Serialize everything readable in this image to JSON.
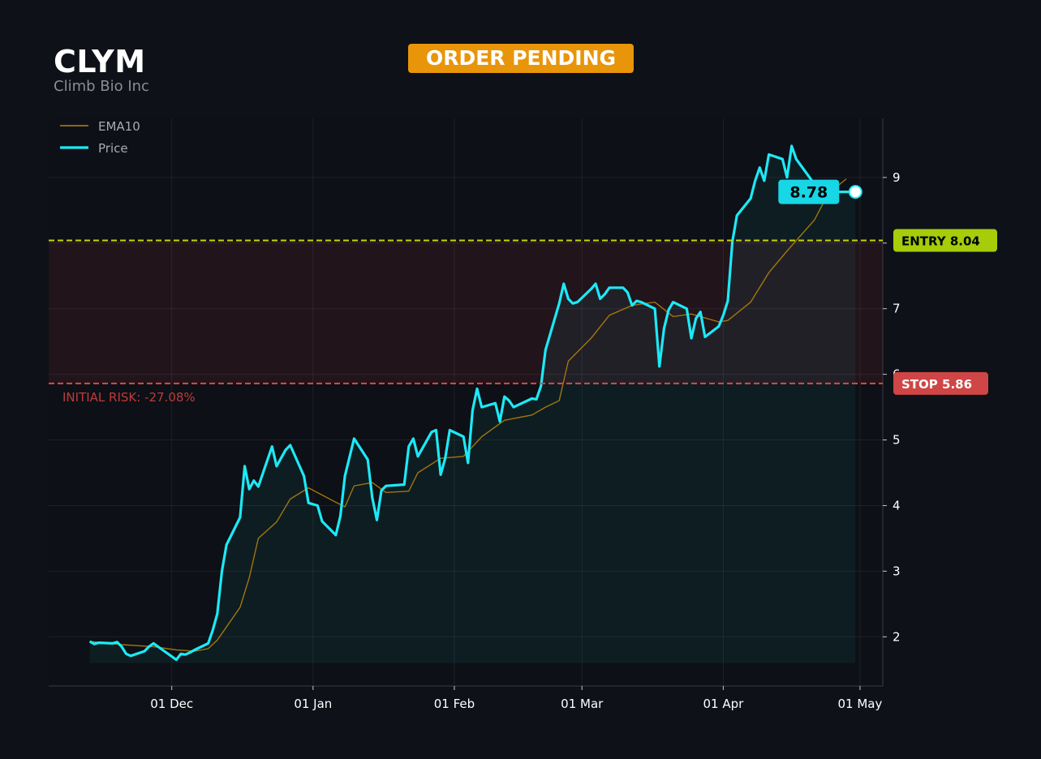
{
  "header": {
    "ticker": "CLYM",
    "company": "Climb Bio Inc",
    "status": "ORDER PENDING"
  },
  "colors": {
    "background": "#0e1118",
    "price": "#1de9f6",
    "ema": "#b8860b",
    "entry": "#c8d400",
    "stop": "#e04848",
    "status": "#e8950a"
  },
  "chart_data": {
    "type": "line",
    "x_type": "date",
    "xlim": [
      "2024-11-04",
      "2025-05-06"
    ],
    "ylim": [
      1.25,
      9.9
    ],
    "yticks": [
      2,
      3,
      4,
      5,
      6,
      7,
      8,
      9
    ],
    "xticks": [
      {
        "date": "2024-12-01",
        "label": "01 Dec"
      },
      {
        "date": "2025-01-01",
        "label": "01 Jan"
      },
      {
        "date": "2025-02-01",
        "label": "01 Feb"
      },
      {
        "date": "2025-03-01",
        "label": "01 Mar"
      },
      {
        "date": "2025-04-01",
        "label": "01 Apr"
      },
      {
        "date": "2025-05-01",
        "label": "01 May"
      }
    ],
    "grid": true,
    "legend": "top-left",
    "legend_entries": [
      "EMA10",
      "Price"
    ],
    "last_price": 8.78,
    "last_price_label": "8.78",
    "entry": {
      "value": 8.04,
      "label": "ENTRY 8.04"
    },
    "stop": {
      "value": 5.86,
      "label": "STOP 5.86"
    },
    "risk_label": "INITIAL RISK: -27.08%",
    "series": [
      {
        "name": "Price",
        "dates": [
          "2024-11-13",
          "2024-11-14",
          "2024-11-15",
          "2024-11-18",
          "2024-11-19",
          "2024-11-20",
          "2024-11-21",
          "2024-11-22",
          "2024-11-25",
          "2024-11-26",
          "2024-11-27",
          "2024-11-29",
          "2024-12-02",
          "2024-12-03",
          "2024-12-04",
          "2024-12-05",
          "2024-12-06",
          "2024-12-09",
          "2024-12-10",
          "2024-12-11",
          "2024-12-12",
          "2024-12-13",
          "2024-12-16",
          "2024-12-17",
          "2024-12-18",
          "2024-12-19",
          "2024-12-20",
          "2024-12-23",
          "2024-12-24",
          "2024-12-26",
          "2024-12-27",
          "2024-12-30",
          "2024-12-31",
          "2025-01-02",
          "2025-01-03",
          "2025-01-06",
          "2025-01-07",
          "2025-01-08",
          "2025-01-10",
          "2025-01-13",
          "2025-01-14",
          "2025-01-15",
          "2025-01-16",
          "2025-01-17",
          "2025-01-21",
          "2025-01-22",
          "2025-01-23",
          "2025-01-24",
          "2025-01-27",
          "2025-01-28",
          "2025-01-29",
          "2025-01-30",
          "2025-01-31",
          "2025-02-03",
          "2025-02-04",
          "2025-02-05",
          "2025-02-06",
          "2025-02-07",
          "2025-02-10",
          "2025-02-11",
          "2025-02-12",
          "2025-02-13",
          "2025-02-14",
          "2025-02-18",
          "2025-02-19",
          "2025-02-20",
          "2025-02-21",
          "2025-02-24",
          "2025-02-25",
          "2025-02-26",
          "2025-02-27",
          "2025-02-28",
          "2025-03-03",
          "2025-03-04",
          "2025-03-05",
          "2025-03-06",
          "2025-03-07",
          "2025-03-10",
          "2025-03-11",
          "2025-03-12",
          "2025-03-13",
          "2025-03-14",
          "2025-03-17",
          "2025-03-18",
          "2025-03-19",
          "2025-03-20",
          "2025-03-21",
          "2025-03-24",
          "2025-03-25",
          "2025-03-26",
          "2025-03-27",
          "2025-03-28",
          "2025-03-31",
          "2025-04-01",
          "2025-04-02",
          "2025-04-03",
          "2025-04-04",
          "2025-04-07",
          "2025-04-08",
          "2025-04-09",
          "2025-04-10",
          "2025-04-11",
          "2025-04-14",
          "2025-04-15",
          "2025-04-16",
          "2025-04-17",
          "2025-04-21",
          "2025-04-22",
          "2025-04-23",
          "2025-04-24",
          "2025-04-25",
          "2025-04-28",
          "2025-04-29",
          "2025-04-30"
        ],
        "values": [
          1.93,
          1.89,
          1.91,
          1.9,
          1.92,
          1.85,
          1.74,
          1.71,
          1.78,
          1.85,
          1.9,
          1.8,
          1.65,
          1.74,
          1.73,
          1.76,
          1.8,
          1.9,
          2.1,
          2.35,
          3.0,
          3.4,
          3.82,
          4.6,
          4.25,
          4.38,
          4.29,
          4.9,
          4.6,
          4.85,
          4.92,
          4.45,
          4.04,
          4.0,
          3.76,
          3.55,
          3.84,
          4.45,
          5.02,
          4.7,
          4.12,
          3.78,
          4.23,
          4.3,
          4.32,
          4.9,
          5.02,
          4.75,
          5.12,
          5.15,
          4.47,
          4.72,
          5.15,
          5.05,
          4.65,
          5.45,
          5.78,
          5.5,
          5.56,
          5.28,
          5.66,
          5.6,
          5.5,
          5.63,
          5.62,
          5.82,
          6.37,
          7.08,
          7.38,
          7.15,
          7.08,
          7.1,
          7.3,
          7.38,
          7.15,
          7.22,
          7.32,
          7.32,
          7.25,
          7.05,
          7.12,
          7.1,
          7.0,
          6.12,
          6.7,
          6.98,
          7.1,
          7.0,
          6.55,
          6.85,
          6.95,
          6.57,
          6.73,
          6.9,
          7.12,
          8.02,
          8.42,
          8.68,
          8.95,
          9.15,
          8.95,
          9.35,
          9.28,
          9.0,
          9.48,
          9.28,
          8.9,
          8.78,
          8.78,
          8.78,
          8.78,
          8.78,
          8.78,
          8.78
        ]
      },
      {
        "name": "EMA10",
        "dates": [
          "2024-11-13",
          "2024-11-20",
          "2024-11-27",
          "2024-12-02",
          "2024-12-06",
          "2024-12-09",
          "2024-12-11",
          "2024-12-13",
          "2024-12-16",
          "2024-12-18",
          "2024-12-20",
          "2024-12-24",
          "2024-12-27",
          "2024-12-31",
          "2025-01-06",
          "2025-01-08",
          "2025-01-10",
          "2025-01-14",
          "2025-01-17",
          "2025-01-22",
          "2025-01-24",
          "2025-01-29",
          "2025-02-03",
          "2025-02-07",
          "2025-02-12",
          "2025-02-18",
          "2025-02-21",
          "2025-02-24",
          "2025-02-26",
          "2025-03-03",
          "2025-03-07",
          "2025-03-12",
          "2025-03-17",
          "2025-03-21",
          "2025-03-25",
          "2025-03-31",
          "2025-04-02",
          "2025-04-07",
          "2025-04-11",
          "2025-04-15",
          "2025-04-21",
          "2025-04-24",
          "2025-04-28"
        ],
        "values": [
          1.93,
          1.88,
          1.85,
          1.8,
          1.78,
          1.82,
          1.95,
          2.15,
          2.45,
          2.9,
          3.5,
          3.75,
          4.1,
          4.27,
          4.05,
          3.98,
          4.3,
          4.35,
          4.2,
          4.22,
          4.5,
          4.72,
          4.75,
          5.05,
          5.3,
          5.38,
          5.5,
          5.6,
          6.2,
          6.55,
          6.9,
          7.05,
          7.1,
          6.88,
          6.92,
          6.8,
          6.82,
          7.1,
          7.55,
          7.88,
          8.35,
          8.75,
          8.98
        ]
      }
    ]
  }
}
